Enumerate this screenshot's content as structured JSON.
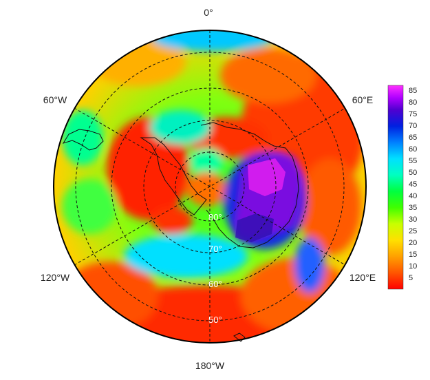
{
  "map": {
    "projection": "south-polar-stereographic",
    "longitude_labels": {
      "top": "0°",
      "upper_left": "60°W",
      "upper_right": "60°E",
      "lower_left": "120°W",
      "lower_right": "120°E",
      "bottom": "180°W"
    },
    "latitude_labels": [
      "80°",
      "70°",
      "60°",
      "50°"
    ],
    "gridlines": "dashed",
    "coastlines": true
  },
  "colorbar": {
    "ticks": [
      85,
      80,
      75,
      70,
      65,
      60,
      55,
      50,
      45,
      40,
      35,
      30,
      25,
      20,
      15,
      10,
      5
    ],
    "range": [
      0,
      87
    ],
    "colors": [
      "#ff0000",
      "#ff5500",
      "#ffa000",
      "#ffe000",
      "#c8ff00",
      "#40ff00",
      "#00ff40",
      "#00ffc0",
      "#00e0ff",
      "#0080ff",
      "#0020e0",
      "#5000d0",
      "#b000ff",
      "#ff30ff"
    ]
  },
  "legend_position": "right"
}
